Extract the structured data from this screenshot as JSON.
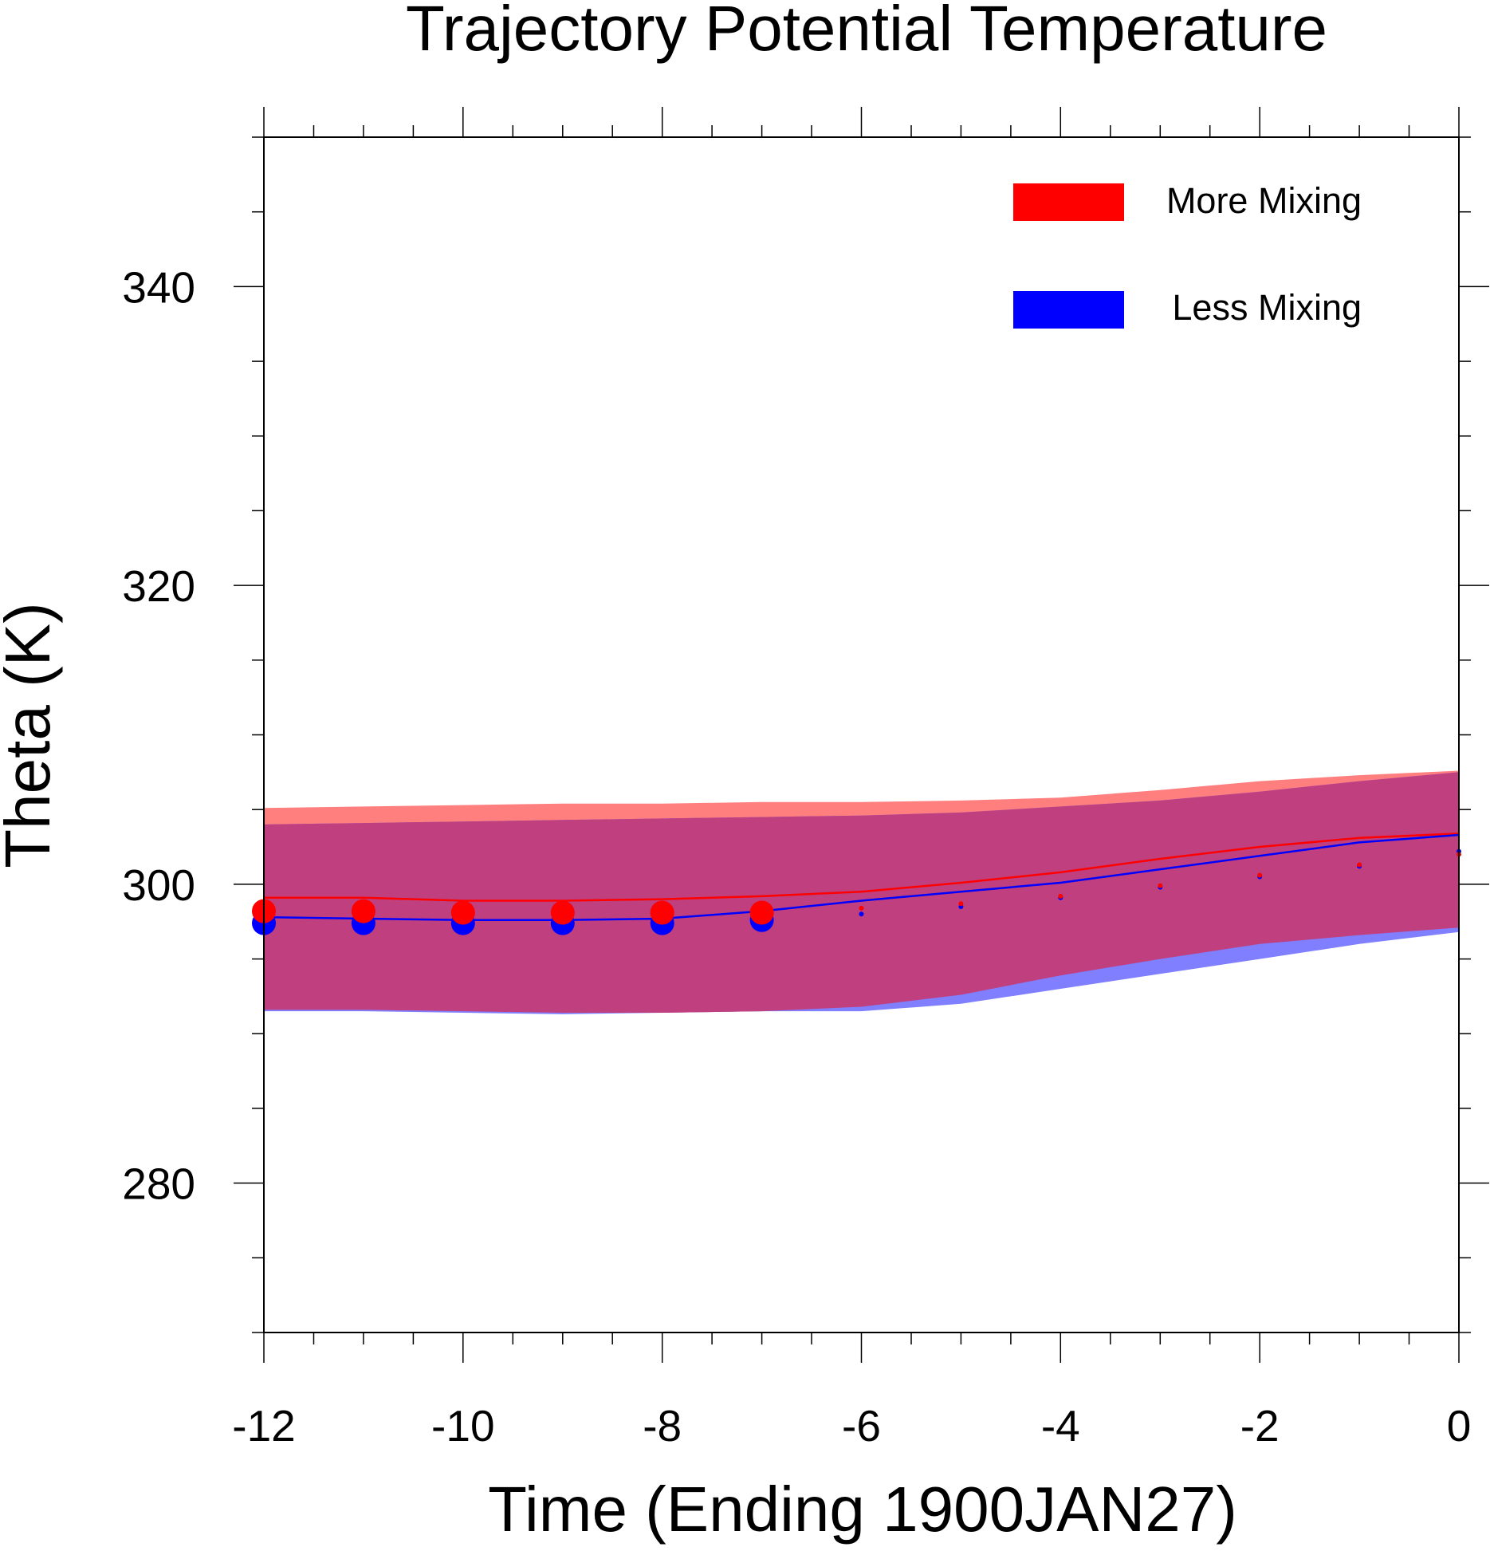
{
  "chart_data": {
    "type": "line",
    "title": "Trajectory Potential Temperature",
    "xlabel": "Time (Ending 1900JAN27)",
    "ylabel": "Theta (K)",
    "xlim": [
      -12,
      0
    ],
    "ylim": [
      270,
      350
    ],
    "xticks": [
      -12,
      -10,
      -8,
      -6,
      -4,
      -2,
      0
    ],
    "xtick_labels": [
      "-12",
      "-10",
      "-8",
      "-6",
      "-4",
      "-2",
      "0"
    ],
    "yticks": [
      280,
      300,
      320,
      340
    ],
    "ytick_labels": [
      "280",
      "300",
      "320",
      "340"
    ],
    "legend_position": "top-right",
    "x": [
      -12,
      -11,
      -10,
      -9,
      -8,
      -7,
      -6,
      -5,
      -4,
      -3,
      -2,
      -1,
      0
    ],
    "series": [
      {
        "name": "More Mixing",
        "color": "#ff0000",
        "band_color": "#ff7f7f",
        "mean": [
          299.1,
          299.1,
          298.9,
          298.9,
          299.0,
          299.2,
          299.5,
          300.1,
          300.8,
          301.7,
          302.5,
          303.1,
          303.4
        ],
        "upper": [
          305.1,
          305.2,
          305.3,
          305.4,
          305.4,
          305.5,
          305.5,
          305.6,
          305.8,
          306.3,
          306.9,
          307.3,
          307.6
        ],
        "lower": [
          291.6,
          291.6,
          291.5,
          291.4,
          291.4,
          291.5,
          291.8,
          292.6,
          293.9,
          295.0,
          296.0,
          296.6,
          297.1
        ],
        "markers": [
          298.2,
          298.2,
          298.1,
          298.1,
          298.1,
          298.1,
          298.4,
          298.7,
          299.2,
          299.9,
          300.6,
          301.3,
          302.0
        ],
        "marker_sizes": [
          15,
          15,
          15,
          15,
          15,
          15,
          3,
          3,
          3,
          3,
          3,
          3,
          3
        ]
      },
      {
        "name": "Less Mixing",
        "color": "#0000ff",
        "band_color": "#7f7fff",
        "mean": [
          297.8,
          297.7,
          297.6,
          297.6,
          297.7,
          298.2,
          298.9,
          299.5,
          300.1,
          301.0,
          301.9,
          302.8,
          303.3
        ],
        "upper": [
          304.0,
          304.1,
          304.2,
          304.3,
          304.4,
          304.5,
          304.6,
          304.8,
          305.2,
          305.6,
          306.2,
          306.9,
          307.5
        ],
        "lower": [
          291.5,
          291.5,
          291.4,
          291.3,
          291.4,
          291.5,
          291.5,
          292.0,
          293.0,
          294.0,
          295.0,
          296.0,
          296.8
        ],
        "markers": [
          297.4,
          297.4,
          297.4,
          297.4,
          297.4,
          297.6,
          298.0,
          298.5,
          299.1,
          299.8,
          300.5,
          301.2,
          302.2
        ],
        "marker_sizes": [
          15,
          15,
          15,
          15,
          15,
          15,
          3,
          3,
          3,
          3,
          3,
          3,
          3
        ]
      }
    ],
    "overlap_color": "#bf3f7f"
  }
}
